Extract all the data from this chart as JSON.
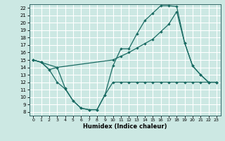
{
  "xlabel": "Humidex (Indice chaleur)",
  "bg_color": "#cce8e3",
  "grid_color": "#ffffff",
  "line_color": "#1a6b63",
  "xlim": [
    -0.5,
    23.5
  ],
  "ylim": [
    7.5,
    22.5
  ],
  "xticks": [
    0,
    1,
    2,
    3,
    4,
    5,
    6,
    7,
    8,
    9,
    10,
    11,
    12,
    13,
    14,
    15,
    16,
    17,
    18,
    19,
    20,
    21,
    22,
    23
  ],
  "yticks": [
    8,
    9,
    10,
    11,
    12,
    13,
    14,
    15,
    16,
    17,
    18,
    19,
    20,
    21,
    22
  ],
  "line1_x": [
    0,
    1,
    2,
    3,
    4,
    5,
    6,
    7,
    8,
    9,
    10,
    11,
    12,
    13,
    14,
    15,
    16,
    17,
    18,
    19,
    20,
    21,
    22,
    23
  ],
  "line1_y": [
    15,
    14.7,
    13.7,
    12.0,
    11.1,
    9.5,
    8.5,
    8.3,
    8.3,
    10.3,
    14.2,
    16.5,
    16.5,
    18.5,
    20.3,
    21.3,
    22.3,
    22.3,
    22.2,
    17.3,
    14.2,
    13.0,
    12.0,
    12.0
  ],
  "line2_x": [
    0,
    1,
    2,
    3,
    10,
    11,
    12,
    13,
    14,
    15,
    16,
    17,
    18,
    19,
    20,
    21,
    22,
    23
  ],
  "line2_y": [
    15,
    14.7,
    13.7,
    14.0,
    15.0,
    15.5,
    16.0,
    16.6,
    17.2,
    17.8,
    18.8,
    19.8,
    21.5,
    17.3,
    14.2,
    13.0,
    12.0,
    12.0
  ],
  "line3_x": [
    0,
    3,
    4,
    5,
    6,
    7,
    8,
    9,
    10,
    11,
    12,
    13,
    14,
    15,
    16,
    17,
    18,
    19,
    20,
    21,
    22,
    23
  ],
  "line3_y": [
    15,
    14.0,
    11.2,
    9.5,
    8.5,
    8.3,
    8.3,
    10.3,
    12.0,
    12.0,
    12.0,
    12.0,
    12.0,
    12.0,
    12.0,
    12.0,
    12.0,
    12.0,
    12.0,
    12.0,
    12.0,
    12.0
  ]
}
